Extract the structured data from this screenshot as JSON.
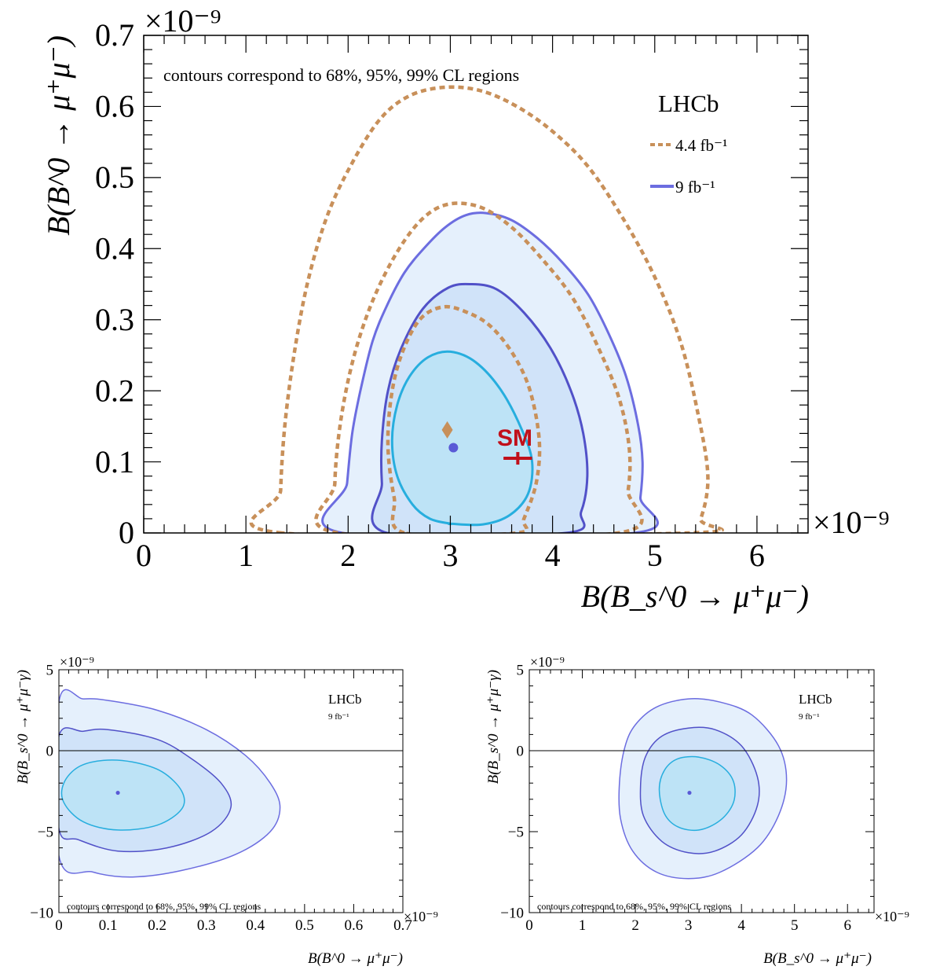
{
  "colors": {
    "fill_99": "#e5f0fc",
    "fill_95": "#d0e3f9",
    "fill_68": "#bde3f6",
    "line_99": "#6c6de0",
    "line_95": "#5151c8",
    "line_68": "#27aede",
    "old_dashed": "#c8905a",
    "best_fit": "#5a5ad6",
    "old_best_fit": "#c8905a",
    "sm": "#c0101a"
  },
  "chart_data": [
    {
      "type": "contour",
      "id": "main",
      "xlabel": "B(B_s^0 → μ⁺μ⁻)",
      "ylabel": "B(B^0 → μ⁺μ⁻)",
      "x_exponent": "×10⁻⁹",
      "y_exponent": "×10⁻⁹",
      "xlim": [
        0,
        6.5
      ],
      "ylim": [
        0,
        0.7
      ],
      "xticks": [
        "0",
        "1",
        "2",
        "3",
        "4",
        "5",
        "6"
      ],
      "yticks": [
        "0",
        "0.1",
        "0.2",
        "0.3",
        "0.4",
        "0.5",
        "0.6",
        "0.7"
      ],
      "annotation": "contours correspond to 68%, 95%, 99% CL regions",
      "experiment": "LHCb",
      "legend": [
        {
          "label": "4.4 fb⁻¹",
          "style": "dashed"
        },
        {
          "label": "9 fb⁻¹",
          "style": "solid"
        }
      ],
      "sm_label": "SM",
      "sm_point": {
        "x": 3.66,
        "y": 0.105,
        "xerr": 0.14
      },
      "best_fit_9fb": {
        "x": 3.03,
        "y": 0.12
      },
      "best_fit_4p4fb": {
        "x": 2.97,
        "y": 0.145
      },
      "contours_9fb": [
        {
          "cl": "99%",
          "points": [
            [
              1.95,
              0.0
            ],
            [
              1.99,
              0.07
            ],
            [
              2.04,
              0.14
            ],
            [
              2.12,
              0.2
            ],
            [
              2.24,
              0.27
            ],
            [
              2.38,
              0.32
            ],
            [
              2.55,
              0.366
            ],
            [
              2.74,
              0.4
            ],
            [
              2.95,
              0.43
            ],
            [
              3.15,
              0.447
            ],
            [
              3.35,
              0.45
            ],
            [
              3.6,
              0.44
            ],
            [
              3.85,
              0.415
            ],
            [
              4.1,
              0.38
            ],
            [
              4.35,
              0.335
            ],
            [
              4.55,
              0.28
            ],
            [
              4.72,
              0.22
            ],
            [
              4.84,
              0.15
            ],
            [
              4.88,
              0.1
            ],
            [
              4.86,
              0.05
            ],
            [
              4.8,
              0.0
            ]
          ]
        },
        {
          "cl": "95%",
          "points": [
            [
              2.38,
              0.0
            ],
            [
              2.33,
              0.07
            ],
            [
              2.33,
              0.13
            ],
            [
              2.39,
              0.2
            ],
            [
              2.52,
              0.26
            ],
            [
              2.73,
              0.315
            ],
            [
              2.98,
              0.345
            ],
            [
              3.2,
              0.35
            ],
            [
              3.45,
              0.343
            ],
            [
              3.72,
              0.31
            ],
            [
              3.98,
              0.26
            ],
            [
              4.18,
              0.2
            ],
            [
              4.3,
              0.14
            ],
            [
              4.34,
              0.08
            ],
            [
              4.28,
              0.03
            ],
            [
              4.13,
              0.0
            ]
          ]
        },
        {
          "cl": "68%",
          "points": [
            [
              3.0,
              0.013
            ],
            [
              2.8,
              0.02
            ],
            [
              2.63,
              0.04
            ],
            [
              2.48,
              0.08
            ],
            [
              2.43,
              0.13
            ],
            [
              2.48,
              0.18
            ],
            [
              2.6,
              0.22
            ],
            [
              2.78,
              0.247
            ],
            [
              3.0,
              0.255
            ],
            [
              3.25,
              0.24
            ],
            [
              3.5,
              0.2
            ],
            [
              3.7,
              0.145
            ],
            [
              3.8,
              0.1
            ],
            [
              3.76,
              0.055
            ],
            [
              3.58,
              0.025
            ],
            [
              3.32,
              0.012
            ],
            [
              3.0,
              0.013
            ]
          ]
        }
      ],
      "contours_4p4fb": [
        {
          "cl": "99%",
          "points": [
            [
              1.35,
              0.0
            ],
            [
              1.34,
              0.06
            ],
            [
              1.38,
              0.15
            ],
            [
              1.47,
              0.25
            ],
            [
              1.6,
              0.35
            ],
            [
              1.78,
              0.44
            ],
            [
              2.0,
              0.51
            ],
            [
              2.3,
              0.58
            ],
            [
              2.6,
              0.615
            ],
            [
              2.95,
              0.627
            ],
            [
              3.3,
              0.622
            ],
            [
              3.65,
              0.6
            ],
            [
              4.0,
              0.565
            ],
            [
              4.35,
              0.515
            ],
            [
              4.7,
              0.44
            ],
            [
              5.0,
              0.36
            ],
            [
              5.25,
              0.27
            ],
            [
              5.42,
              0.17
            ],
            [
              5.52,
              0.08
            ],
            [
              5.45,
              0.02
            ],
            [
              5.33,
              0.0
            ]
          ]
        },
        {
          "cl": "95%",
          "points": [
            [
              1.9,
              0.0
            ],
            [
              1.87,
              0.07
            ],
            [
              1.93,
              0.16
            ],
            [
              2.06,
              0.25
            ],
            [
              2.25,
              0.33
            ],
            [
              2.5,
              0.4
            ],
            [
              2.75,
              0.445
            ],
            [
              3.0,
              0.463
            ],
            [
              3.3,
              0.458
            ],
            [
              3.6,
              0.43
            ],
            [
              3.9,
              0.385
            ],
            [
              4.2,
              0.33
            ],
            [
              4.45,
              0.26
            ],
            [
              4.65,
              0.19
            ],
            [
              4.75,
              0.12
            ],
            [
              4.74,
              0.06
            ],
            [
              4.64,
              0.0
            ]
          ]
        },
        {
          "cl": "68%",
          "points": [
            [
              2.55,
              0.0
            ],
            [
              2.45,
              0.05
            ],
            [
              2.39,
              0.12
            ],
            [
              2.42,
              0.19
            ],
            [
              2.52,
              0.25
            ],
            [
              2.7,
              0.3
            ],
            [
              2.93,
              0.318
            ],
            [
              3.17,
              0.31
            ],
            [
              3.4,
              0.29
            ],
            [
              3.62,
              0.25
            ],
            [
              3.78,
              0.2
            ],
            [
              3.87,
              0.13
            ],
            [
              3.84,
              0.07
            ],
            [
              3.72,
              0.02
            ],
            [
              3.65,
              0.0
            ]
          ]
        }
      ]
    },
    {
      "type": "contour",
      "id": "bottom-left",
      "xlabel": "B(B^0 → μ⁺μ⁻)",
      "ylabel": "B(B_s^0 → μ⁺μ⁻γ)",
      "x_exponent": "×10⁻⁹",
      "y_exponent": "×10⁻⁹",
      "xlim": [
        0,
        0.7
      ],
      "ylim": [
        -10,
        5
      ],
      "xticks": [
        "0",
        "0.1",
        "0.2",
        "0.3",
        "0.4",
        "0.5",
        "0.6",
        "0.7"
      ],
      "yticks": [
        "−10",
        "−5",
        "0",
        "5"
      ],
      "annotation": "contours correspond to 68%, 95%, 99% CL regions",
      "experiment": "LHCb",
      "luminosity": "9 fb⁻¹",
      "best_fit": {
        "x": 0.12,
        "y": -2.6
      },
      "contours_9fb": [
        {
          "cl": "99%",
          "points": [
            [
              0.0,
              3.0
            ],
            [
              0.05,
              3.2
            ],
            [
              0.1,
              3.1
            ],
            [
              0.2,
              2.5
            ],
            [
              0.3,
              1.3
            ],
            [
              0.38,
              -0.3
            ],
            [
              0.43,
              -2.0
            ],
            [
              0.45,
              -3.5
            ],
            [
              0.43,
              -5.0
            ],
            [
              0.36,
              -6.4
            ],
            [
              0.25,
              -7.4
            ],
            [
              0.15,
              -7.8
            ],
            [
              0.07,
              -7.5
            ],
            [
              0.0,
              -6.5
            ]
          ]
        },
        {
          "cl": "95%",
          "points": [
            [
              0.0,
              0.9
            ],
            [
              0.05,
              1.2
            ],
            [
              0.1,
              1.3
            ],
            [
              0.2,
              0.7
            ],
            [
              0.27,
              -0.5
            ],
            [
              0.33,
              -2.0
            ],
            [
              0.35,
              -3.5
            ],
            [
              0.31,
              -5.0
            ],
            [
              0.22,
              -6.0
            ],
            [
              0.12,
              -6.2
            ],
            [
              0.04,
              -5.5
            ],
            [
              0.0,
              -4.8
            ]
          ]
        },
        {
          "cl": "68%",
          "points": [
            [
              0.01,
              -2.0
            ],
            [
              0.04,
              -1.0
            ],
            [
              0.09,
              -0.6
            ],
            [
              0.15,
              -0.7
            ],
            [
              0.21,
              -1.3
            ],
            [
              0.25,
              -2.5
            ],
            [
              0.25,
              -3.6
            ],
            [
              0.2,
              -4.6
            ],
            [
              0.12,
              -4.9
            ],
            [
              0.05,
              -4.4
            ],
            [
              0.01,
              -3.2
            ]
          ]
        }
      ]
    },
    {
      "type": "contour",
      "id": "bottom-right",
      "xlabel": "B(B_s^0 → μ⁺μ⁻)",
      "ylabel": "B(B_s^0 → μ⁺μ⁻γ)",
      "x_exponent": "×10⁻⁹",
      "y_exponent": "×10⁻⁹",
      "xlim": [
        0,
        6.5
      ],
      "ylim": [
        -10,
        5
      ],
      "xticks": [
        "0",
        "1",
        "2",
        "3",
        "4",
        "5",
        "6"
      ],
      "yticks": [
        "−10",
        "−5",
        "0",
        "5"
      ],
      "annotation": "contours correspond to 68%, 95%, 99% CL regions",
      "experiment": "LHCb",
      "luminosity": "9 fb⁻¹",
      "best_fit": {
        "x": 3.02,
        "y": -2.6
      },
      "contours_9fb": [
        {
          "cl": "99%",
          "points": [
            [
              1.7,
              -2.0
            ],
            [
              1.8,
              0.2
            ],
            [
              2.0,
              1.6
            ],
            [
              2.4,
              2.7
            ],
            [
              3.0,
              3.2
            ],
            [
              3.6,
              3.0
            ],
            [
              4.2,
              2.2
            ],
            [
              4.7,
              0.3
            ],
            [
              4.85,
              -1.8
            ],
            [
              4.7,
              -4.0
            ],
            [
              4.3,
              -6.0
            ],
            [
              3.6,
              -7.5
            ],
            [
              3.0,
              -7.9
            ],
            [
              2.4,
              -7.5
            ],
            [
              1.95,
              -6.2
            ],
            [
              1.72,
              -4.2
            ]
          ]
        },
        {
          "cl": "95%",
          "points": [
            [
              2.1,
              -2.0
            ],
            [
              2.2,
              -0.3
            ],
            [
              2.5,
              0.9
            ],
            [
              3.0,
              1.4
            ],
            [
              3.5,
              1.3
            ],
            [
              4.0,
              0.3
            ],
            [
              4.3,
              -1.6
            ],
            [
              4.3,
              -3.4
            ],
            [
              4.0,
              -5.2
            ],
            [
              3.5,
              -6.2
            ],
            [
              3.0,
              -6.3
            ],
            [
              2.5,
              -5.6
            ],
            [
              2.15,
              -4.0
            ]
          ]
        },
        {
          "cl": "68%",
          "points": [
            [
              2.45,
              -2.4
            ],
            [
              2.55,
              -1.2
            ],
            [
              2.8,
              -0.5
            ],
            [
              3.2,
              -0.4
            ],
            [
              3.6,
              -0.9
            ],
            [
              3.85,
              -1.9
            ],
            [
              3.85,
              -3.2
            ],
            [
              3.6,
              -4.3
            ],
            [
              3.2,
              -4.9
            ],
            [
              2.8,
              -4.7
            ],
            [
              2.55,
              -3.9
            ]
          ]
        }
      ]
    }
  ]
}
